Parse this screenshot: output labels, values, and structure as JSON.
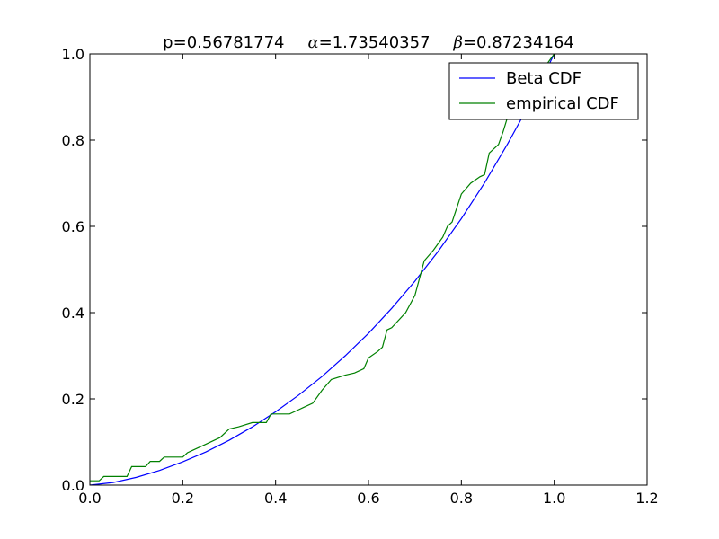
{
  "chart_data": {
    "type": "line",
    "title": {
      "p_label": "p=",
      "p_value": "0.56781774",
      "alpha_symbol": "α",
      "alpha_label": "=",
      "alpha_value": "1.73540357",
      "beta_symbol": "β",
      "beta_label": "=",
      "beta_value": "0.87234164"
    },
    "xlabel": "",
    "ylabel": "",
    "xlim": [
      0,
      1.2
    ],
    "ylim": [
      0,
      1.0
    ],
    "x_ticks": [
      0.0,
      0.2,
      0.4,
      0.6,
      0.8,
      1.0,
      1.2
    ],
    "x_tick_labels": [
      "0.0",
      "0.2",
      "0.4",
      "0.6",
      "0.8",
      "1.0",
      "1.2"
    ],
    "y_ticks": [
      0.0,
      0.2,
      0.4,
      0.6,
      0.8,
      1.0
    ],
    "y_tick_labels": [
      "0.0",
      "0.2",
      "0.4",
      "0.6",
      "0.8",
      "1.0"
    ],
    "grid": false,
    "legend_position": "top-right",
    "series": [
      {
        "name": "Beta CDF",
        "color": "#0000ff",
        "x": [
          0.0,
          0.05,
          0.1,
          0.15,
          0.2,
          0.25,
          0.3,
          0.35,
          0.4,
          0.45,
          0.5,
          0.55,
          0.6,
          0.65,
          0.7,
          0.75,
          0.8,
          0.85,
          0.9,
          0.95,
          1.0
        ],
        "y": [
          0.0,
          0.006,
          0.018,
          0.034,
          0.054,
          0.077,
          0.104,
          0.135,
          0.17,
          0.209,
          0.252,
          0.3,
          0.352,
          0.41,
          0.473,
          0.542,
          0.618,
          0.701,
          0.792,
          0.89,
          1.0
        ]
      },
      {
        "name": "empirical CDF",
        "color": "#008000",
        "x": [
          0.0,
          0.02,
          0.03,
          0.06,
          0.08,
          0.09,
          0.12,
          0.13,
          0.15,
          0.16,
          0.2,
          0.21,
          0.22,
          0.24,
          0.25,
          0.27,
          0.28,
          0.3,
          0.32,
          0.35,
          0.38,
          0.39,
          0.43,
          0.45,
          0.46,
          0.48,
          0.5,
          0.52,
          0.55,
          0.57,
          0.59,
          0.6,
          0.62,
          0.63,
          0.64,
          0.65,
          0.68,
          0.7,
          0.72,
          0.74,
          0.76,
          0.77,
          0.78,
          0.8,
          0.82,
          0.84,
          0.85,
          0.86,
          0.88,
          0.89,
          0.9,
          0.92,
          0.95,
          0.98,
          1.0
        ],
        "y": [
          0.01,
          0.01,
          0.02,
          0.02,
          0.02,
          0.043,
          0.043,
          0.055,
          0.055,
          0.065,
          0.065,
          0.075,
          0.08,
          0.09,
          0.095,
          0.105,
          0.11,
          0.13,
          0.135,
          0.145,
          0.145,
          0.165,
          0.165,
          0.175,
          0.18,
          0.19,
          0.22,
          0.245,
          0.255,
          0.26,
          0.27,
          0.295,
          0.31,
          0.32,
          0.36,
          0.365,
          0.4,
          0.44,
          0.52,
          0.545,
          0.575,
          0.6,
          0.61,
          0.675,
          0.7,
          0.715,
          0.72,
          0.77,
          0.79,
          0.82,
          0.855,
          0.88,
          0.93,
          0.97,
          1.0
        ]
      }
    ]
  }
}
